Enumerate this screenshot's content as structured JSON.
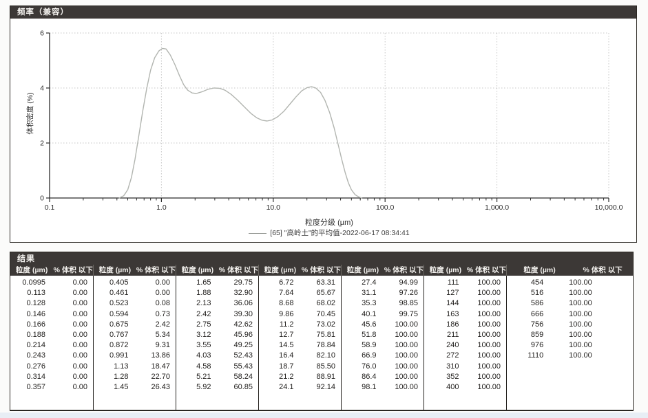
{
  "chart_panel": {
    "title": "频率（兼容）"
  },
  "chart_data": {
    "type": "line",
    "title": "频率（兼容）",
    "xlabel": "粒度分级 (µm)",
    "ylabel": "体积密度 (%)",
    "x_scale": "log",
    "xlim": [
      0.1,
      10000
    ],
    "ylim": [
      0,
      6
    ],
    "grid": "dotted",
    "legend_position": "bottom-center",
    "x_ticks": [
      {
        "v": 0.1,
        "label": "0.1"
      },
      {
        "v": 1,
        "label": "1.0"
      },
      {
        "v": 10,
        "label": "10.0"
      },
      {
        "v": 100,
        "label": "100.0"
      },
      {
        "v": 1000,
        "label": "1,000.0"
      },
      {
        "v": 10000,
        "label": "10,000.0"
      }
    ],
    "y_ticks": [
      {
        "v": 0,
        "label": "0"
      },
      {
        "v": 2,
        "label": "2"
      },
      {
        "v": 4,
        "label": "4"
      },
      {
        "v": 6,
        "label": "6"
      }
    ],
    "legend": "[65] \"高岭土\"的平均值-2022-06-17 08:34:41",
    "series": [
      {
        "name": "[65] \"高岭土\"的平均值-2022-06-17 08:34:41",
        "color": "#b2b5b0",
        "points": [
          [
            0.42,
            0.0
          ],
          [
            0.46,
            0.08
          ],
          [
            0.5,
            0.3
          ],
          [
            0.54,
            0.75
          ],
          [
            0.58,
            1.4
          ],
          [
            0.63,
            2.3
          ],
          [
            0.68,
            3.15
          ],
          [
            0.74,
            4.0
          ],
          [
            0.8,
            4.65
          ],
          [
            0.87,
            5.1
          ],
          [
            0.95,
            5.35
          ],
          [
            1.02,
            5.44
          ],
          [
            1.1,
            5.42
          ],
          [
            1.2,
            5.2
          ],
          [
            1.32,
            4.85
          ],
          [
            1.45,
            4.45
          ],
          [
            1.58,
            4.12
          ],
          [
            1.72,
            3.92
          ],
          [
            1.88,
            3.82
          ],
          [
            2.05,
            3.8
          ],
          [
            2.3,
            3.86
          ],
          [
            2.6,
            3.95
          ],
          [
            2.95,
            4.0
          ],
          [
            3.3,
            3.99
          ],
          [
            3.7,
            3.92
          ],
          [
            4.2,
            3.77
          ],
          [
            4.8,
            3.56
          ],
          [
            5.5,
            3.32
          ],
          [
            6.3,
            3.08
          ],
          [
            7.1,
            2.92
          ],
          [
            7.9,
            2.83
          ],
          [
            8.8,
            2.8
          ],
          [
            9.8,
            2.84
          ],
          [
            11.0,
            2.96
          ],
          [
            12.5,
            3.16
          ],
          [
            14.0,
            3.4
          ],
          [
            16.0,
            3.68
          ],
          [
            18.0,
            3.9
          ],
          [
            20.0,
            4.01
          ],
          [
            22.0,
            4.05
          ],
          [
            24.0,
            4.0
          ],
          [
            26.5,
            3.84
          ],
          [
            29.0,
            3.55
          ],
          [
            32.0,
            3.1
          ],
          [
            35.0,
            2.55
          ],
          [
            38.0,
            1.95
          ],
          [
            41.0,
            1.4
          ],
          [
            44.0,
            0.92
          ],
          [
            47.0,
            0.55
          ],
          [
            50.0,
            0.3
          ],
          [
            54.0,
            0.12
          ],
          [
            58.0,
            0.04
          ],
          [
            62.0,
            0.0
          ]
        ]
      }
    ],
    "colors": {
      "grid": "#c6c6c6",
      "axis": "#2b2b2b",
      "tick_label": "#2d2d2d"
    }
  },
  "results": {
    "title": "结果",
    "col_headers": {
      "size": "粒度 (µm)",
      "pct": "% 体积 以下"
    },
    "groups": [
      [
        [
          "0.0995",
          "0.00"
        ],
        [
          "0.113",
          "0.00"
        ],
        [
          "0.128",
          "0.00"
        ],
        [
          "0.146",
          "0.00"
        ],
        [
          "0.166",
          "0.00"
        ],
        [
          "0.188",
          "0.00"
        ],
        [
          "0.214",
          "0.00"
        ],
        [
          "0.243",
          "0.00"
        ],
        [
          "0.276",
          "0.00"
        ],
        [
          "0.314",
          "0.00"
        ],
        [
          "0.357",
          "0.00"
        ]
      ],
      [
        [
          "0.405",
          "0.00"
        ],
        [
          "0.461",
          "0.00"
        ],
        [
          "0.523",
          "0.08"
        ],
        [
          "0.594",
          "0.73"
        ],
        [
          "0.675",
          "2.42"
        ],
        [
          "0.767",
          "5.34"
        ],
        [
          "0.872",
          "9.31"
        ],
        [
          "0.991",
          "13.86"
        ],
        [
          "1.13",
          "18.47"
        ],
        [
          "1.28",
          "22.70"
        ],
        [
          "1.45",
          "26.43"
        ]
      ],
      [
        [
          "1.65",
          "29.75"
        ],
        [
          "1.88",
          "32.90"
        ],
        [
          "2.13",
          "36.06"
        ],
        [
          "2.42",
          "39.30"
        ],
        [
          "2.75",
          "42.62"
        ],
        [
          "3.12",
          "45.96"
        ],
        [
          "3.55",
          "49.25"
        ],
        [
          "4.03",
          "52.43"
        ],
        [
          "4.58",
          "55.43"
        ],
        [
          "5.21",
          "58.24"
        ],
        [
          "5.92",
          "60.85"
        ]
      ],
      [
        [
          "6.72",
          "63.31"
        ],
        [
          "7.64",
          "65.67"
        ],
        [
          "8.68",
          "68.02"
        ],
        [
          "9.86",
          "70.45"
        ],
        [
          "11.2",
          "73.02"
        ],
        [
          "12.7",
          "75.81"
        ],
        [
          "14.5",
          "78.84"
        ],
        [
          "16.4",
          "82.10"
        ],
        [
          "18.7",
          "85.50"
        ],
        [
          "21.2",
          "88.91"
        ],
        [
          "24.1",
          "92.14"
        ]
      ],
      [
        [
          "27.4",
          "94.99"
        ],
        [
          "31.1",
          "97.26"
        ],
        [
          "35.3",
          "98.85"
        ],
        [
          "40.1",
          "99.75"
        ],
        [
          "45.6",
          "100.00"
        ],
        [
          "51.8",
          "100.00"
        ],
        [
          "58.9",
          "100.00"
        ],
        [
          "66.9",
          "100.00"
        ],
        [
          "76.0",
          "100.00"
        ],
        [
          "86.4",
          "100.00"
        ],
        [
          "98.1",
          "100.00"
        ]
      ],
      [
        [
          "111",
          "100.00"
        ],
        [
          "127",
          "100.00"
        ],
        [
          "144",
          "100.00"
        ],
        [
          "163",
          "100.00"
        ],
        [
          "186",
          "100.00"
        ],
        [
          "211",
          "100.00"
        ],
        [
          "240",
          "100.00"
        ],
        [
          "272",
          "100.00"
        ],
        [
          "310",
          "100.00"
        ],
        [
          "352",
          "100.00"
        ],
        [
          "400",
          "100.00"
        ]
      ],
      [
        [
          "454",
          "100.00"
        ],
        [
          "516",
          "100.00"
        ],
        [
          "586",
          "100.00"
        ],
        [
          "666",
          "100.00"
        ],
        [
          "756",
          "100.00"
        ],
        [
          "859",
          "100.00"
        ],
        [
          "976",
          "100.00"
        ],
        [
          "1110",
          "100.00"
        ]
      ]
    ]
  }
}
